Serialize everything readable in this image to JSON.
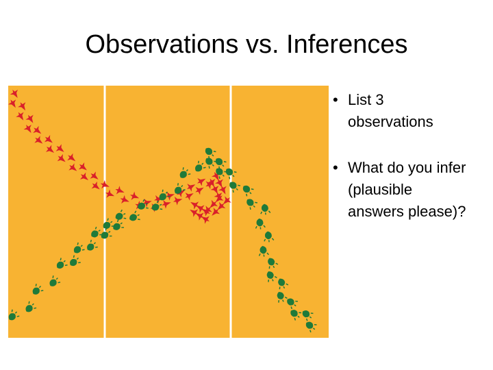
{
  "title": "Observations vs. Inferences",
  "bullets": [
    "List 3 observations",
    "What do you infer (plausible answers please)?"
  ]
}
